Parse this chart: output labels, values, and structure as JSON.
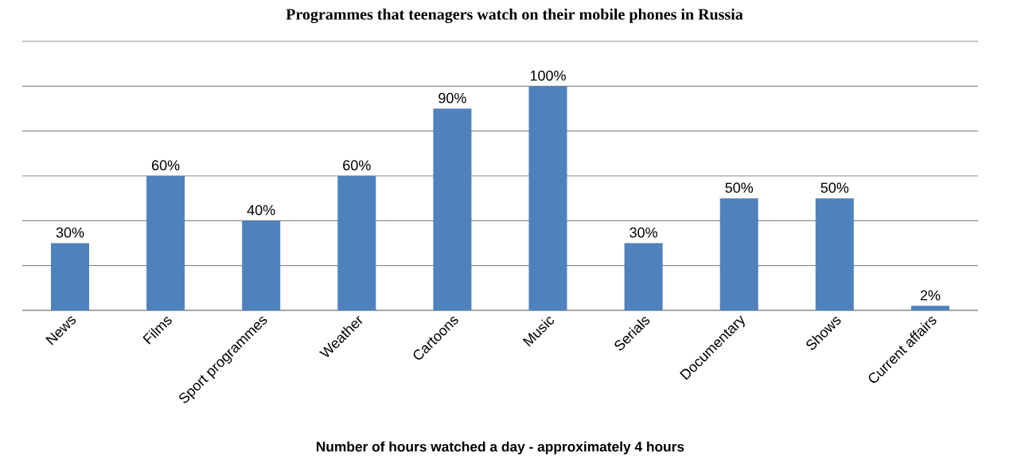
{
  "chart_data": {
    "type": "bar",
    "title": "Programmes that teenagers watch on their mobile phones in Russia",
    "xlabel": "Number of hours watched a day -  approximately 4 hours",
    "categories": [
      "News",
      "Films",
      "Sport programmes",
      "Weather",
      "Cartoons",
      "Music",
      "Serials",
      "Documentary",
      "Shows",
      "Current affairs"
    ],
    "values": [
      30,
      60,
      40,
      60,
      90,
      100,
      30,
      50,
      50,
      2
    ],
    "value_labels": [
      "30%",
      "60%",
      "40%",
      "60%",
      "90%",
      "100%",
      "30%",
      "50%",
      "50%",
      "2%"
    ],
    "color": "#4f81bd",
    "ylim": [
      0,
      120
    ],
    "yticks": [
      {
        "value": 0,
        "label": null
      },
      {
        "value": 20,
        "label": null
      },
      {
        "value": 40,
        "label": null
      },
      {
        "value": 60,
        "label": null
      },
      {
        "value": 80,
        "label": null
      },
      {
        "value": 100,
        "label": null
      },
      {
        "value": 120,
        "label": null
      }
    ],
    "grid": "y",
    "tick_labels": "x"
  }
}
